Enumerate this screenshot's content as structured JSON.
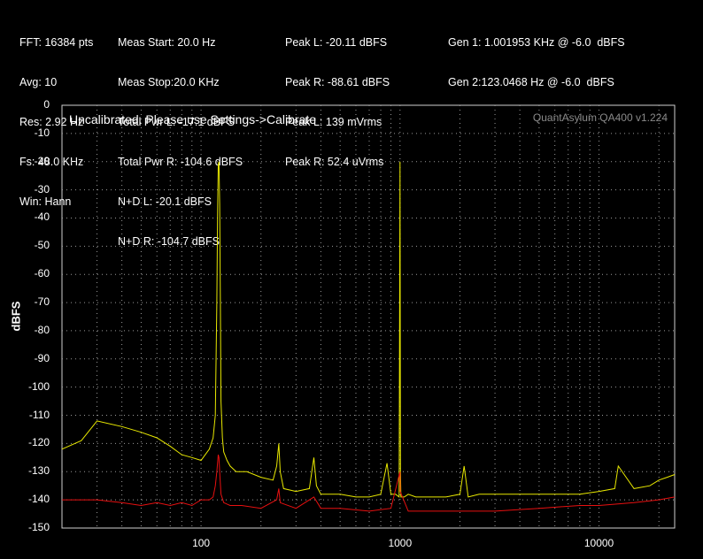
{
  "header": {
    "col1": [
      "FFT: 16384 pts",
      "Avg: 10",
      "Res: 2.92 Hz",
      "Fs: 48.0 KHz",
      "Win: Hann"
    ],
    "col2": [
      "Meas Start: 20.0 Hz",
      "Meas Stop:20.0 KHz",
      "Total Pwr L: -17.1 dBFS",
      "Total Pwr R: -104.6 dBFS",
      "N+D L: -20.1 dBFS",
      "N+D R: -104.7 dBFS"
    ],
    "col3": [
      "Peak L: -20.11 dBFS",
      "Peak R: -88.61 dBFS",
      "Peak L: 139 mVrms",
      "Peak R: 52.4 uVrms"
    ],
    "col4": [
      "Gen 1: 1.001953 KHz @ -6.0  dBFS",
      "Gen 2:123.0468 Hz @ -6.0  dBFS"
    ]
  },
  "notice": "Uncalibrated. Please use Settings->Calibrate",
  "brand": "QuantAsylum QA400 v1.224",
  "chart_data": {
    "type": "line",
    "title": "",
    "xlabel": "",
    "ylabel": "dBFS",
    "xscale": "log",
    "xlim": [
      20,
      24000
    ],
    "ylim": [
      -150,
      0
    ],
    "yticks": [
      0,
      -10,
      -20,
      -30,
      -40,
      -50,
      -60,
      -70,
      -80,
      -90,
      -100,
      -110,
      -120,
      -130,
      -140,
      -150
    ],
    "ytick_labels": [
      "0",
      "-10",
      "-20",
      "-30",
      "-40",
      "-50",
      "-60",
      "-70",
      "-80",
      "-90",
      "-100",
      "-110",
      "-120",
      "-130",
      "-140",
      "-150"
    ],
    "xticks": [
      100,
      1000,
      10000
    ],
    "xtick_labels": [
      "100",
      "1000",
      "10000"
    ],
    "grid": true,
    "series": [
      {
        "color": "#e8e800",
        "x": [
          20,
          25,
          30,
          40,
          50,
          60,
          70,
          80,
          90,
          100,
          105,
          110,
          115,
          118,
          120,
          121,
          122,
          123,
          124,
          125,
          126,
          128,
          130,
          135,
          140,
          150,
          170,
          200,
          230,
          240,
          246,
          250,
          260,
          300,
          350,
          369,
          380,
          400,
          500,
          600,
          700,
          800,
          860,
          900,
          950,
          990,
          1000,
          1002,
          1005,
          1010,
          1050,
          1100,
          1200,
          1500,
          1700,
          2000,
          2100,
          2200,
          2500,
          3000,
          4000,
          5000,
          6000,
          8000,
          10000,
          12000,
          12500,
          15000,
          18000,
          20000,
          22000,
          24000
        ],
        "y": [
          -122,
          -119,
          -112,
          -114,
          -116,
          -118,
          -121,
          -124,
          -125,
          -126,
          -124,
          -122,
          -118,
          -110,
          -70,
          -40,
          -21,
          -20,
          -35,
          -70,
          -105,
          -118,
          -123,
          -126,
          -128,
          -130,
          -130,
          -132,
          -133,
          -128,
          -120,
          -130,
          -136,
          -137,
          -136,
          -125,
          -135,
          -138,
          -138,
          -139,
          -139,
          -138,
          -127,
          -138,
          -138,
          -139,
          -20,
          -70,
          -130,
          -139,
          -139,
          -138,
          -139,
          -139,
          -139,
          -138,
          -128,
          -139,
          -138,
          -138,
          -138,
          -138,
          -138,
          -138,
          -137,
          -136,
          -128,
          -136,
          -135,
          -133,
          -132,
          -131
        ]
      },
      {
        "color": "#e81010",
        "x": [
          20,
          30,
          40,
          50,
          60,
          70,
          80,
          90,
          100,
          110,
          115,
          118,
          120,
          122,
          123,
          124,
          126,
          130,
          140,
          160,
          200,
          240,
          246,
          250,
          300,
          369,
          400,
          500,
          700,
          900,
          1000,
          1002,
          1100,
          1500,
          2000,
          3000,
          5000,
          8000,
          10000,
          15000,
          20000,
          24000
        ],
        "y": [
          -140,
          -140,
          -141,
          -142,
          -141,
          -142,
          -141,
          -142,
          -140,
          -140,
          -139,
          -135,
          -130,
          -124,
          -125,
          -130,
          -138,
          -141,
          -142,
          -142,
          -143,
          -140,
          -136,
          -141,
          -143,
          -139,
          -143,
          -143,
          -144,
          -143,
          -130,
          -137,
          -144,
          -144,
          -144,
          -144,
          -143,
          -142,
          -142,
          -141,
          -140,
          -139
        ]
      }
    ]
  }
}
